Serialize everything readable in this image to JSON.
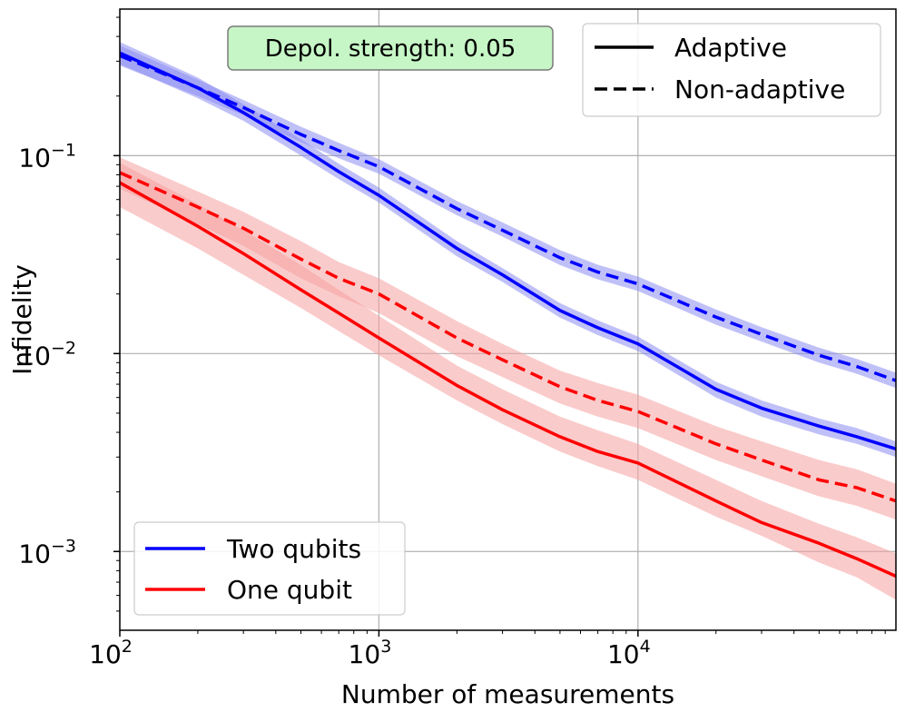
{
  "chart_data": {
    "type": "line",
    "title": "",
    "xlabel": "Number of measurements",
    "ylabel": "Infidelity",
    "xscale": "log",
    "yscale": "log",
    "xlim": [
      100,
      99000
    ],
    "ylim": [
      0.0004,
      0.55
    ],
    "grid": true,
    "x_ticks": [
      {
        "value": 100,
        "base": "10",
        "exp": "2"
      },
      {
        "value": 1000,
        "base": "10",
        "exp": "3"
      },
      {
        "value": 10000,
        "base": "10",
        "exp": "4"
      }
    ],
    "y_ticks": [
      {
        "value": 0.001,
        "base": "10",
        "exp": "−3"
      },
      {
        "value": 0.01,
        "base": "10",
        "exp": "−2"
      },
      {
        "value": 0.1,
        "base": "10",
        "exp": "−1"
      }
    ],
    "x": [
      100,
      200,
      300,
      500,
      700,
      1000,
      2000,
      3000,
      5000,
      7000,
      10000,
      20000,
      30000,
      50000,
      70000,
      99000
    ],
    "series": [
      {
        "name": "Two qubits - Adaptive",
        "qubits": "Two qubits",
        "style": "solid",
        "color": "#0000ff",
        "band_color": "#8c8cf2",
        "values": [
          0.33,
          0.22,
          0.165,
          0.11,
          0.083,
          0.063,
          0.034,
          0.025,
          0.0165,
          0.0135,
          0.0112,
          0.0066,
          0.0053,
          0.0043,
          0.0038,
          0.0033
        ],
        "band_low": [
          0.29,
          0.195,
          0.15,
          0.1,
          0.076,
          0.058,
          0.031,
          0.023,
          0.0152,
          0.0124,
          0.0103,
          0.006,
          0.0048,
          0.0039,
          0.0035,
          0.003
        ],
        "band_high": [
          0.375,
          0.248,
          0.182,
          0.121,
          0.091,
          0.069,
          0.037,
          0.027,
          0.018,
          0.0147,
          0.0122,
          0.0072,
          0.0058,
          0.0047,
          0.0042,
          0.0036
        ]
      },
      {
        "name": "Two qubits - Non-adaptive",
        "qubits": "Two qubits",
        "style": "dashed",
        "color": "#0000ff",
        "band_color": "#8c8cf2",
        "values": [
          0.32,
          0.22,
          0.175,
          0.128,
          0.106,
          0.088,
          0.054,
          0.042,
          0.0305,
          0.0258,
          0.0225,
          0.0153,
          0.0125,
          0.0098,
          0.0086,
          0.0073
        ],
        "band_low": [
          0.285,
          0.2,
          0.16,
          0.117,
          0.097,
          0.081,
          0.05,
          0.039,
          0.028,
          0.0237,
          0.0207,
          0.014,
          0.0115,
          0.009,
          0.0079,
          0.0067
        ],
        "band_high": [
          0.36,
          0.242,
          0.191,
          0.14,
          0.116,
          0.096,
          0.059,
          0.046,
          0.0333,
          0.0281,
          0.0245,
          0.0167,
          0.0136,
          0.0107,
          0.0094,
          0.008
        ]
      },
      {
        "name": "One qubit - Adaptive",
        "qubits": "One qubit",
        "style": "solid",
        "color": "#ff0000",
        "band_color": "#f5a0a0",
        "values": [
          0.073,
          0.044,
          0.032,
          0.021,
          0.016,
          0.012,
          0.0069,
          0.0052,
          0.0038,
          0.0032,
          0.0028,
          0.0018,
          0.0014,
          0.0011,
          0.00092,
          0.00075
        ],
        "band_low": [
          0.055,
          0.034,
          0.025,
          0.017,
          0.013,
          0.0098,
          0.0058,
          0.0044,
          0.0032,
          0.0027,
          0.0023,
          0.0015,
          0.0012,
          0.00088,
          0.00074,
          0.00057
        ],
        "band_high": [
          0.092,
          0.057,
          0.042,
          0.028,
          0.021,
          0.0155,
          0.0087,
          0.0066,
          0.0048,
          0.0041,
          0.0035,
          0.0023,
          0.0018,
          0.00138,
          0.00118,
          0.00098
        ]
      },
      {
        "name": "One qubit - Non-adaptive",
        "qubits": "One qubit",
        "style": "dashed",
        "color": "#ff0000",
        "band_color": "#f5a0a0",
        "values": [
          0.082,
          0.055,
          0.043,
          0.03,
          0.024,
          0.02,
          0.012,
          0.0093,
          0.0068,
          0.0058,
          0.0051,
          0.0035,
          0.0029,
          0.0023,
          0.0021,
          0.0018
        ],
        "band_low": [
          0.068,
          0.045,
          0.035,
          0.024,
          0.0195,
          0.016,
          0.0097,
          0.0076,
          0.0056,
          0.0048,
          0.0042,
          0.0029,
          0.0024,
          0.0019,
          0.0017,
          0.00145
        ],
        "band_high": [
          0.098,
          0.066,
          0.052,
          0.037,
          0.029,
          0.024,
          0.0146,
          0.0112,
          0.0082,
          0.0071,
          0.0062,
          0.0043,
          0.0036,
          0.0029,
          0.0026,
          0.0022
        ]
      }
    ],
    "legend_style": {
      "placement": "top-right",
      "entries": [
        {
          "label": "Adaptive",
          "style": "solid"
        },
        {
          "label": "Non-adaptive",
          "style": "dashed"
        }
      ]
    },
    "legend_qubits": {
      "placement": "bottom-left",
      "entries": [
        {
          "label": "Two qubits",
          "color": "#0000ff"
        },
        {
          "label": "One qubit",
          "color": "#ff0000"
        }
      ]
    },
    "annotation": {
      "text": "Depol. strength: 0.05",
      "placement": "top-center",
      "background": "#c6f5c6"
    }
  }
}
